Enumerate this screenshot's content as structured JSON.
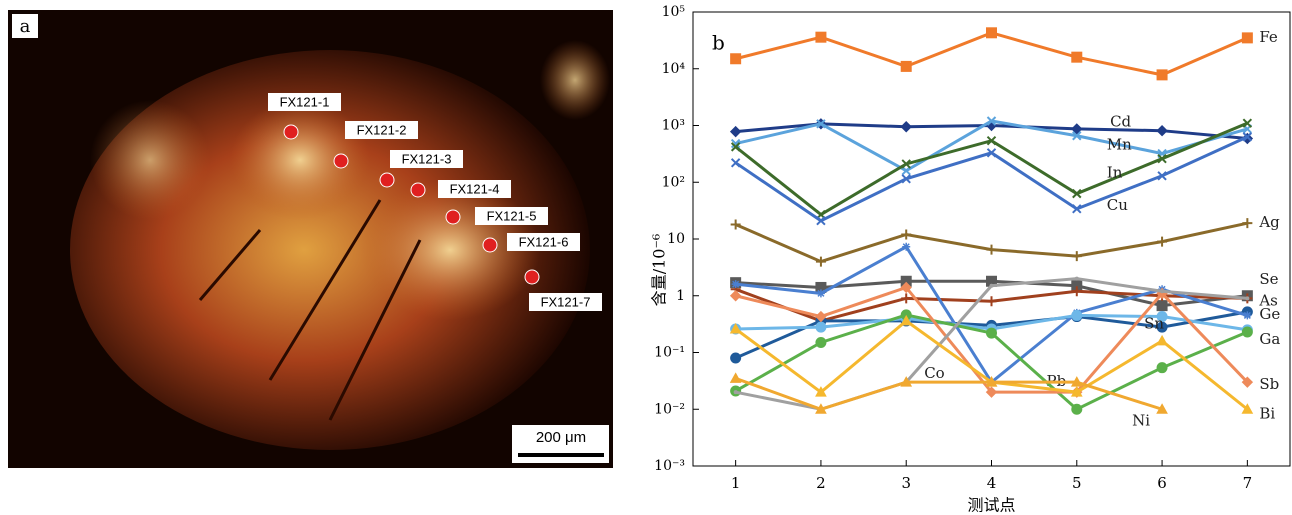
{
  "panel_a": {
    "label": "a",
    "points": [
      "FX121-1",
      "FX121-2",
      "FX121-3",
      "FX121-4",
      "FX121-5",
      "FX121-6",
      "FX121-7"
    ],
    "scale_bar": "200 μm"
  },
  "chart_data": {
    "type": "line",
    "panel_label": "b",
    "y_label": "含量/10⁻⁶",
    "x_label": "测试点",
    "log_y": true,
    "x": [
      1,
      2,
      3,
      4,
      5,
      6,
      7
    ],
    "xlim": [
      0.5,
      7.5
    ],
    "xticks": [
      1,
      2,
      3,
      4,
      5,
      6,
      7
    ],
    "ylim": [
      0.001,
      100000
    ],
    "yticks": [
      {
        "value": 0.001,
        "label": "10⁻³"
      },
      {
        "value": 0.01,
        "label": "10⁻²"
      },
      {
        "value": 0.1,
        "label": "10⁻¹"
      },
      1,
      10,
      {
        "value": 100,
        "label": "10²"
      },
      {
        "value": 1000,
        "label": "10³"
      },
      {
        "value": 10000,
        "label": "10⁴"
      },
      {
        "value": 100000,
        "label": "10⁵"
      }
    ],
    "series": [
      {
        "name": "Fe",
        "color": "#f07a2a",
        "marker": "square",
        "values": [
          15000,
          36000,
          11000,
          43000,
          16000,
          7800,
          35000
        ]
      },
      {
        "name": "Cd",
        "color": "#1f3c88",
        "marker": "diamond",
        "values": [
          780,
          1070,
          950,
          1000,
          870,
          810,
          590
        ]
      },
      {
        "name": "Mn",
        "color": "#5ba3dc",
        "marker": "x",
        "values": [
          480,
          1070,
          160,
          1200,
          660,
          320,
          870
        ]
      },
      {
        "name": "In",
        "color": "#3d6b2a",
        "marker": "x",
        "values": [
          420,
          27,
          210,
          540,
          63,
          260,
          1100
        ]
      },
      {
        "name": "Cu",
        "color": "#3f6fc4",
        "marker": "x",
        "values": [
          220,
          21,
          115,
          330,
          34,
          130,
          630
        ]
      },
      {
        "name": "Ag",
        "color": "#8a6a2a",
        "marker": "plus",
        "values": [
          18,
          4,
          12,
          6.5,
          5,
          9,
          19
        ]
      },
      {
        "name": "Se",
        "color": "#5a5a5a",
        "marker": "square",
        "values": [
          1.7,
          1.4,
          1.8,
          1.8,
          1.5,
          0.67,
          1
        ]
      },
      {
        "name": "As",
        "color": "#a0401e",
        "marker": "plus",
        "values": [
          1.3,
          0.36,
          0.9,
          0.8,
          1.2,
          1,
          0.9
        ]
      },
      {
        "name": "Ge",
        "color": "#1f5a9a",
        "marker": "circle",
        "values": [
          0.08,
          0.36,
          0.36,
          0.3,
          0.43,
          0.28,
          0.52
        ]
      },
      {
        "name": "Pb",
        "color": "#4a7fd0",
        "marker": "star",
        "values": [
          1.6,
          1.1,
          7.3,
          0.03,
          0.5,
          1.3,
          0.45
        ]
      },
      {
        "name": "Sn",
        "color": "#6db7e8",
        "marker": "circle",
        "values": [
          0.26,
          0.28,
          0.4,
          0.26,
          0.45,
          0.43,
          0.25
        ]
      },
      {
        "name": "Ga",
        "color": "#5bb04a",
        "marker": "circle",
        "values": [
          0.021,
          0.15,
          0.46,
          0.22,
          0.01,
          0.054,
          0.23
        ]
      },
      {
        "name": "Sb",
        "color": "#ee8a5a",
        "marker": "diamond",
        "values": [
          1,
          0.43,
          1.4,
          0.02,
          0.02,
          1.1,
          0.03
        ]
      },
      {
        "name": "Co",
        "color": "#a0a0a0",
        "marker": "none",
        "values": [
          0.02,
          0.01,
          0.03,
          1.5,
          2,
          1.2,
          0.9
        ]
      },
      {
        "name": "Bi",
        "color": "#f5b82e",
        "marker": "triangle",
        "values": [
          0.26,
          0.02,
          0.36,
          0.03,
          0.02,
          0.16,
          0.01
        ]
      },
      {
        "name": "Ni",
        "color": "#f0a830",
        "marker": "triangle",
        "values": [
          0.035,
          0.01,
          0.03,
          0.03,
          0.03,
          0.01,
          null
        ]
      }
    ]
  }
}
